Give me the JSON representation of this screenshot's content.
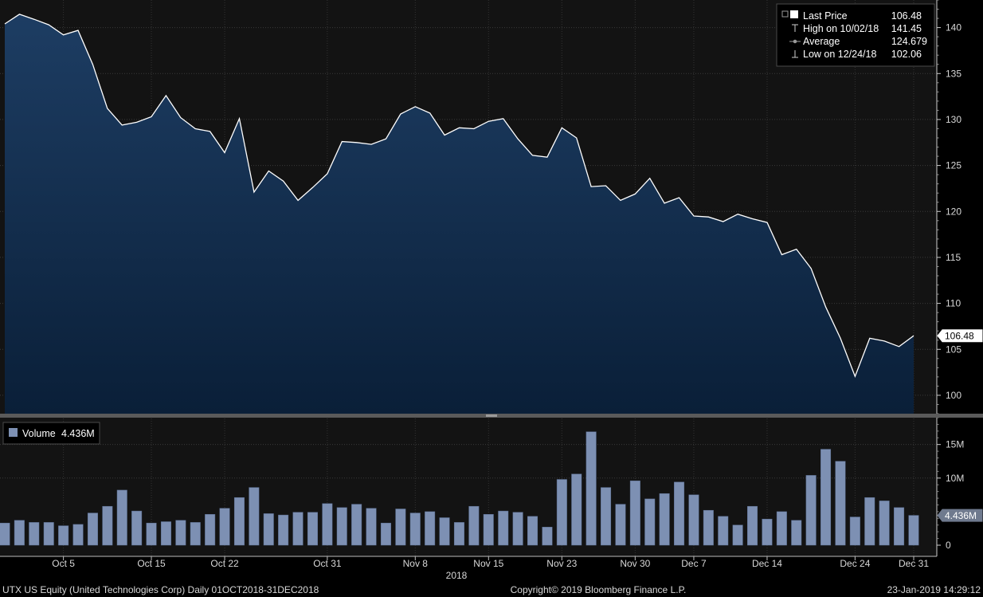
{
  "chart_data": [
    {
      "type": "area",
      "ticker": "UTX US Equity",
      "y_axis_side": "right",
      "ylim": [
        98,
        143
      ],
      "yticks": [
        100,
        105,
        110,
        115,
        120,
        125,
        130,
        135,
        140
      ],
      "x": [
        "2018-10-01",
        "2018-10-02",
        "2018-10-03",
        "2018-10-04",
        "2018-10-05",
        "2018-10-08",
        "2018-10-09",
        "2018-10-10",
        "2018-10-11",
        "2018-10-12",
        "2018-10-15",
        "2018-10-16",
        "2018-10-17",
        "2018-10-18",
        "2018-10-19",
        "2018-10-22",
        "2018-10-23",
        "2018-10-24",
        "2018-10-25",
        "2018-10-26",
        "2018-10-29",
        "2018-10-30",
        "2018-10-31",
        "2018-11-01",
        "2018-11-02",
        "2018-11-05",
        "2018-11-06",
        "2018-11-07",
        "2018-11-08",
        "2018-11-09",
        "2018-11-12",
        "2018-11-13",
        "2018-11-14",
        "2018-11-15",
        "2018-11-16",
        "2018-11-19",
        "2018-11-20",
        "2018-11-21",
        "2018-11-23",
        "2018-11-26",
        "2018-11-27",
        "2018-11-28",
        "2018-11-29",
        "2018-11-30",
        "2018-12-03",
        "2018-12-04",
        "2018-12-06",
        "2018-12-07",
        "2018-12-10",
        "2018-12-11",
        "2018-12-12",
        "2018-12-13",
        "2018-12-14",
        "2018-12-17",
        "2018-12-18",
        "2018-12-19",
        "2018-12-20",
        "2018-12-21",
        "2018-12-24",
        "2018-12-26",
        "2018-12-27",
        "2018-12-28",
        "2018-12-31"
      ],
      "series": [
        {
          "name": "Last Price",
          "values": [
            140.4,
            141.45,
            140.9,
            140.3,
            139.2,
            139.7,
            136.0,
            131.2,
            129.4,
            129.7,
            130.3,
            132.6,
            130.2,
            129.0,
            128.7,
            126.4,
            130.1,
            122.1,
            124.4,
            123.3,
            121.2,
            122.6,
            124.1,
            127.6,
            127.5,
            127.3,
            127.9,
            130.6,
            131.4,
            130.7,
            128.3,
            129.1,
            129.0,
            129.8,
            130.1,
            127.9,
            126.1,
            125.9,
            129.1,
            128.0,
            122.7,
            122.8,
            121.2,
            121.9,
            123.6,
            120.9,
            121.5,
            119.5,
            119.4,
            118.9,
            119.7,
            119.2,
            118.8,
            115.3,
            115.9,
            113.8,
            109.6,
            106.2,
            102.06,
            106.2,
            105.9,
            105.3,
            106.48
          ]
        }
      ],
      "last_value_label": "106.48",
      "legend": {
        "position": "top-right",
        "rows": [
          {
            "label": "Last Price",
            "value": "106.48"
          },
          {
            "label": "High on 10/02/18",
            "value": "141.45"
          },
          {
            "label": "Average",
            "value": "124.679"
          },
          {
            "label": "Low on 12/24/18",
            "value": "102.06"
          }
        ]
      },
      "colors": {
        "line": "#ffffff",
        "fill_top": "#1d3d63",
        "fill_bottom": "#0a1f38",
        "background": "#131313"
      }
    },
    {
      "type": "bar",
      "y_axis_side": "right",
      "ylim": [
        0,
        19
      ],
      "yunit": "M",
      "yticks": [
        {
          "value": 0,
          "label": "0"
        },
        {
          "value": 10,
          "label": "10M"
        },
        {
          "value": 15,
          "label": "15M"
        }
      ],
      "series": [
        {
          "name": "Volume",
          "values": [
            3.3,
            3.7,
            3.4,
            3.4,
            2.9,
            3.1,
            4.8,
            5.8,
            8.2,
            5.1,
            3.3,
            3.5,
            3.7,
            3.4,
            4.6,
            5.5,
            7.1,
            8.6,
            4.7,
            4.5,
            4.9,
            4.9,
            6.2,
            5.6,
            6.1,
            5.5,
            3.3,
            5.4,
            4.8,
            5.0,
            4.1,
            3.4,
            5.8,
            4.6,
            5.1,
            4.9,
            4.3,
            2.7,
            9.8,
            10.6,
            16.9,
            8.6,
            6.1,
            9.6,
            6.9,
            7.7,
            9.4,
            7.5,
            5.2,
            4.3,
            3.0,
            5.8,
            3.9,
            5.0,
            3.7,
            10.4,
            14.3,
            12.5,
            4.2,
            7.1,
            6.6,
            5.6,
            4.436
          ]
        }
      ],
      "last_value_label": "4.436M",
      "legend": {
        "position": "top-left",
        "label": "Volume",
        "value": "4.436M"
      },
      "colors": {
        "bar": "#7d90b3",
        "bar_edge": "#5b6e92",
        "background": "#131313"
      }
    }
  ],
  "x_axis": {
    "labels": [
      {
        "date": "2018-10-05",
        "label": "Oct 5"
      },
      {
        "date": "2018-10-15",
        "label": "Oct 15"
      },
      {
        "date": "2018-10-22",
        "label": "Oct 22"
      },
      {
        "date": "2018-10-31",
        "label": "Oct 31"
      },
      {
        "date": "2018-11-08",
        "label": "Nov 8"
      },
      {
        "date": "2018-11-15",
        "label": "Nov 15"
      },
      {
        "date": "2018-11-23",
        "label": "Nov 23"
      },
      {
        "date": "2018-11-30",
        "label": "Nov 30"
      },
      {
        "date": "2018-12-07",
        "label": "Dec 7"
      },
      {
        "date": "2018-12-14",
        "label": "Dec 14"
      },
      {
        "date": "2018-12-24",
        "label": "Dec 24"
      },
      {
        "date": "2018-12-31",
        "label": "Dec 31"
      }
    ],
    "year_label": "2018"
  },
  "footer": {
    "left": "UTX US Equity (United Technologies Corp)  Daily 01OCT2018-31DEC2018",
    "center": "Copyright© 2019 Bloomberg Finance L.P.",
    "right": "23-Jan-2019 14:29:12"
  }
}
